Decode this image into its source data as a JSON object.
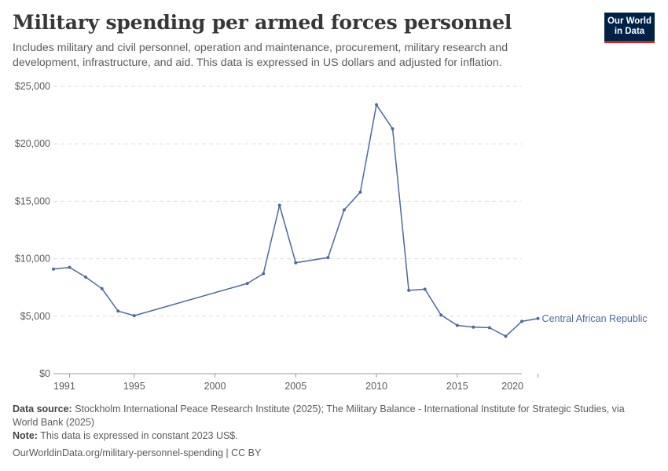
{
  "header": {
    "title": "Military spending per armed forces personnel",
    "subtitle": "Includes military and civil personnel, operation and maintenance, procurement, military research and development, infrastructure, and aid. This data is expressed in US dollars and adjusted for inflation."
  },
  "logo": {
    "line1": "Our World",
    "line2": "in Data"
  },
  "footer": {
    "source_label": "Data source:",
    "source_text": "Stockholm International Peace Research Institute (2025); The Military Balance - International Institute for Strategic Studies, via World Bank (2025)",
    "note_label": "Note:",
    "note_text": "This data is expressed in constant 2023 US$.",
    "url_text": "OurWorldinData.org/military-personnel-spending | CC BY"
  },
  "colors": {
    "line": "#4c6a9c",
    "grid": "#dddddd",
    "axis": "#999999"
  },
  "chart_data": {
    "type": "line",
    "title": "Military spending per armed forces personnel",
    "xlim": [
      1991,
      2020
    ],
    "ylim": [
      0,
      25000
    ],
    "x_ticks": [
      1991,
      1995,
      2000,
      2005,
      2010,
      2015,
      2020
    ],
    "y_ticks": [
      0,
      5000,
      10000,
      15000,
      20000,
      25000
    ],
    "y_tick_labels": [
      "$0",
      "$5,000",
      "$10,000",
      "$15,000",
      "$20,000",
      "$25,000"
    ],
    "grid": "horizontal dashed",
    "series": [
      {
        "name": "Central African Republic",
        "color": "#4c6a9c",
        "points": [
          [
            1990,
            9100
          ],
          [
            1991,
            9250
          ],
          [
            1992,
            8400
          ],
          [
            1993,
            7400
          ],
          [
            1994,
            5450
          ],
          [
            1995,
            5050
          ],
          [
            2002,
            7850
          ],
          [
            2003,
            8700
          ],
          [
            2004,
            14650
          ],
          [
            2005,
            9650
          ],
          [
            2007,
            10100
          ],
          [
            2008,
            14250
          ],
          [
            2009,
            15800
          ],
          [
            2010,
            23400
          ],
          [
            2011,
            21300
          ],
          [
            2012,
            7250
          ],
          [
            2013,
            7350
          ],
          [
            2014,
            5100
          ],
          [
            2015,
            4200
          ],
          [
            2016,
            4050
          ],
          [
            2017,
            4000
          ],
          [
            2018,
            3250
          ],
          [
            2019,
            4550
          ],
          [
            2020,
            4800
          ]
        ]
      }
    ]
  }
}
